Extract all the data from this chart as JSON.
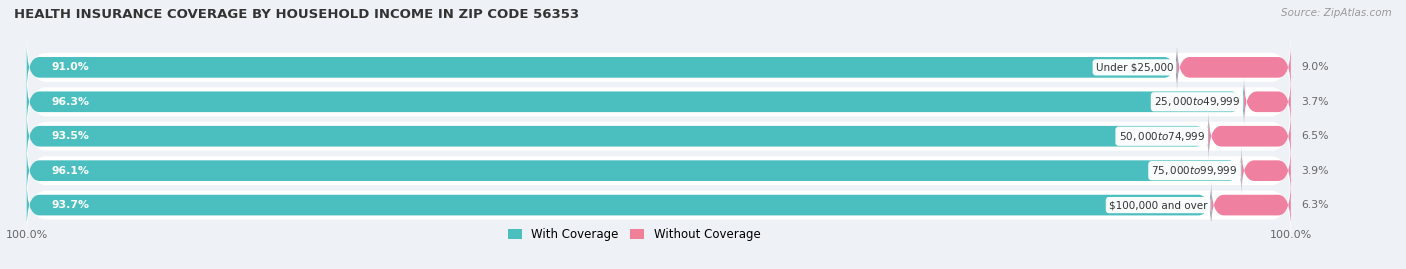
{
  "title": "HEALTH INSURANCE COVERAGE BY HOUSEHOLD INCOME IN ZIP CODE 56353",
  "source": "Source: ZipAtlas.com",
  "categories": [
    "Under $25,000",
    "$25,000 to $49,999",
    "$50,000 to $74,999",
    "$75,000 to $99,999",
    "$100,000 and over"
  ],
  "with_coverage": [
    91.0,
    96.3,
    93.5,
    96.1,
    93.7
  ],
  "without_coverage": [
    9.0,
    3.7,
    6.5,
    3.9,
    6.3
  ],
  "color_with": "#4BBFC0",
  "color_without": "#F080A0",
  "background_color": "#eef2f7",
  "bar_height": 0.6,
  "row_bg_color": "#ffffff",
  "legend_color_with": "#4BBFC0",
  "legend_color_without": "#F08098",
  "title_fontsize": 9.5,
  "label_fontsize": 7.8,
  "source_fontsize": 7.5
}
